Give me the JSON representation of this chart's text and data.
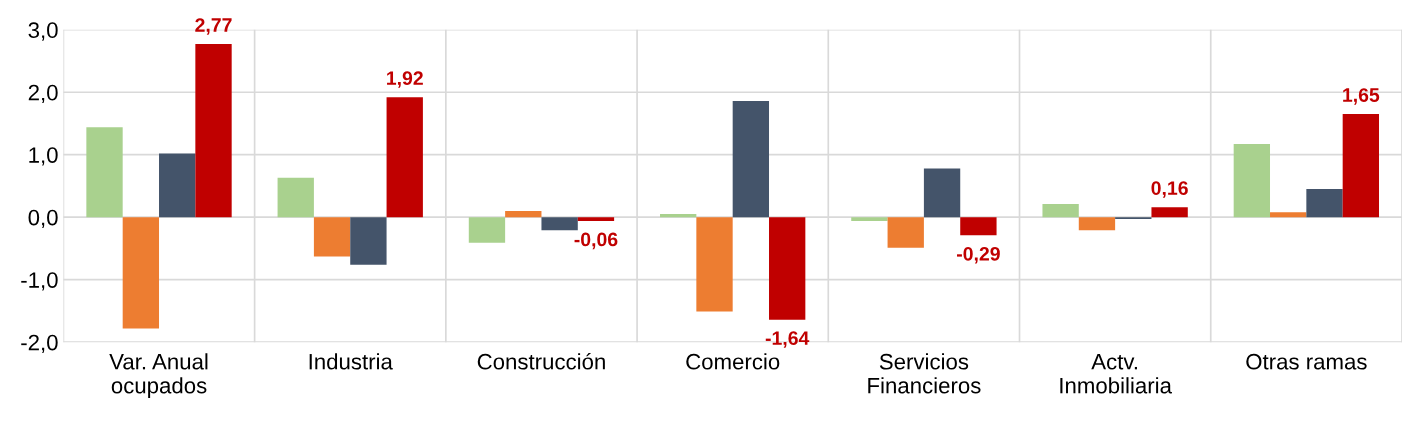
{
  "chart_data": {
    "type": "bar",
    "categories": [
      "Var. Anual\nocupados",
      "Industria",
      "Construcción",
      "Comercio",
      "Servicios\nFinancieros",
      "Actv.\nInmobiliaria",
      "Otras ramas"
    ],
    "series": [
      {
        "color": "#a9d18e",
        "values": [
          1.44,
          0.63,
          -0.41,
          0.05,
          -0.06,
          0.21,
          1.17
        ]
      },
      {
        "color": "#ed7d31",
        "values": [
          -1.78,
          -0.63,
          0.1,
          -1.51,
          -0.49,
          -0.21,
          0.08
        ]
      },
      {
        "color": "#44546a",
        "values": [
          1.02,
          -0.76,
          -0.21,
          1.86,
          0.78,
          -0.03,
          0.45
        ]
      },
      {
        "color": "#c00000",
        "values": [
          2.77,
          1.92,
          -0.06,
          -1.64,
          -0.29,
          0.16,
          1.65
        ],
        "value_labels": [
          "2,77",
          "1,92",
          "-0,06",
          "-1,64",
          "-0,29",
          "0,16",
          "1,65"
        ]
      }
    ],
    "ylim": [
      -2.0,
      3.0
    ],
    "yticks": [
      {
        "value": -2.0,
        "label": "-2,0"
      },
      {
        "value": -1.0,
        "label": "-1,0"
      },
      {
        "value": 0.0,
        "label": "0,0"
      },
      {
        "value": 1.0,
        "label": "1,0"
      },
      {
        "value": 2.0,
        "label": "2,0"
      },
      {
        "value": 3.0,
        "label": "3,0"
      }
    ],
    "grid": true
  }
}
